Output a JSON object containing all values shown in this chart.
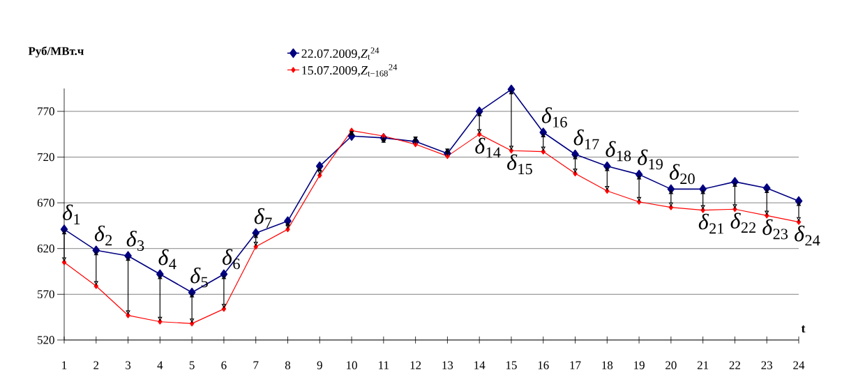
{
  "chart_data": {
    "type": "line",
    "ylabel": "Руб/МВт.ч",
    "xlabel": "t",
    "categories": [
      "1",
      "2",
      "3",
      "4",
      "5",
      "6",
      "7",
      "8",
      "9",
      "10",
      "11",
      "12",
      "13",
      "14",
      "15",
      "16",
      "17",
      "18",
      "19",
      "20",
      "21",
      "22",
      "23",
      "24"
    ],
    "series": [
      {
        "name": "22.07.2009,*Z*$_{t}$$^{24}$",
        "color": "#000080",
        "values": [
          641,
          618,
          612,
          592,
          572,
          592,
          637,
          650,
          710,
          743,
          741,
          737,
          724,
          770,
          794,
          747,
          723,
          710,
          701,
          685,
          685,
          693,
          686,
          672
        ]
      },
      {
        "name": "15.07.2009,*Z*$_{t−168}$$^{24}$",
        "color": "#ff0000",
        "values": [
          605,
          579,
          547,
          540,
          538,
          554,
          622,
          641,
          700,
          749,
          743,
          734,
          721,
          745,
          727,
          726,
          702,
          683,
          671,
          665,
          662,
          663,
          656,
          649
        ]
      }
    ],
    "ylim": [
      520,
      795
    ],
    "yticks": [
      520,
      570,
      620,
      670,
      720,
      770
    ],
    "grid": "y",
    "legend": "top",
    "marker": "diamond",
    "line_style": "solid",
    "annotations": [
      {
        "text": "*δ*$_{1}$",
        "x": "1",
        "y": 641
      },
      {
        "text": "*δ*$_{2}$",
        "x": "2",
        "y": 618
      },
      {
        "text": "*δ*$_{3}$",
        "x": "3",
        "y": 612
      },
      {
        "text": "*δ*$_{4}$",
        "x": "4",
        "y": 592
      },
      {
        "text": "*δ*$_{5}$",
        "x": "5",
        "y": 572
      },
      {
        "text": "*δ*$_{6}$",
        "x": "6",
        "y": 592
      },
      {
        "text": "*δ*$_{7}$",
        "x": "7",
        "y": 637
      },
      {
        "text": "*δ*$_{14}$",
        "x": "14",
        "y": 745
      },
      {
        "text": "*δ*$_{15}$",
        "x": "15",
        "y": 727
      },
      {
        "text": "*δ*$_{16}$",
        "x": "16",
        "y": 747
      },
      {
        "text": "*δ*$_{17}$",
        "x": "17",
        "y": 723
      },
      {
        "text": "*δ*$_{18}$",
        "x": "18",
        "y": 710
      },
      {
        "text": "*δ*$_{19}$",
        "x": "19",
        "y": 701
      },
      {
        "text": "*δ*$_{20}$",
        "x": "20",
        "y": 685
      },
      {
        "text": "*δ*$_{21}$",
        "x": "21",
        "y": 662
      },
      {
        "text": "*δ*$_{22}$",
        "x": "22",
        "y": 663
      },
      {
        "text": "*δ*$_{23}$",
        "x": "23",
        "y": 656
      },
      {
        "text": "*δ*$_{24}$",
        "x": "24",
        "y": 649
      }
    ]
  }
}
